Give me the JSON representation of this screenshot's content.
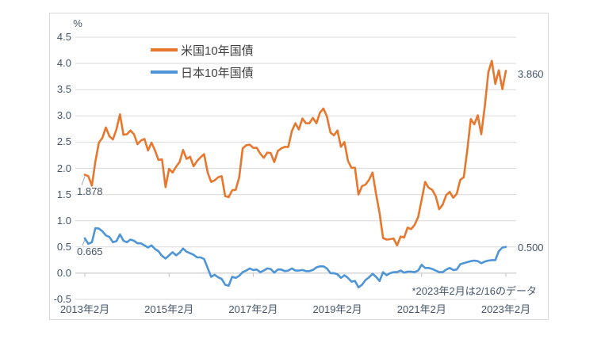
{
  "colors": {
    "us_line": "#E8772E",
    "jp_line": "#4E95D7",
    "grid": "#D9D9D9",
    "axis": "#BFBFBF",
    "leader": "#A6A6A6",
    "tick_text": "#44546A",
    "legend_text": "#3F3F3F",
    "frame_border": "#D9D9D9"
  },
  "chart_data": {
    "type": "line",
    "unit_label": "%",
    "frequency": "monthly",
    "x_start": "2013年2月",
    "x_end": "2023年2月",
    "x_tick_labels": [
      "2013年2月",
      "2015年2月",
      "2017年2月",
      "2019年2月",
      "2021年2月",
      "2023年2月"
    ],
    "x_tick_indices": [
      0,
      24,
      48,
      72,
      96,
      120
    ],
    "y_tick_labels": [
      "4.5",
      "4.0",
      "3.5",
      "3.0",
      "2.5",
      "2.0",
      "1.5",
      "1.0",
      "0.5",
      "0.0",
      "-0.5"
    ],
    "y_tick_values": [
      4.5,
      4.0,
      3.5,
      3.0,
      2.5,
      2.0,
      1.5,
      1.0,
      0.5,
      0.0,
      -0.5
    ],
    "ylim": [
      -0.5,
      4.5
    ],
    "grid": true,
    "legend_position": "top-left-inside",
    "series": [
      {
        "name": "米国10年国債",
        "color": "#E8772E",
        "values": [
          1.878,
          1.85,
          1.67,
          2.13,
          2.49,
          2.58,
          2.78,
          2.61,
          2.55,
          2.74,
          3.03,
          2.64,
          2.65,
          2.72,
          2.65,
          2.46,
          2.53,
          2.56,
          2.34,
          2.49,
          2.34,
          2.16,
          2.17,
          1.64,
          1.99,
          1.92,
          2.03,
          2.12,
          2.35,
          2.18,
          2.22,
          2.04,
          2.14,
          2.21,
          2.27,
          1.92,
          1.74,
          1.77,
          1.83,
          1.85,
          1.47,
          1.45,
          1.58,
          1.59,
          1.83,
          2.38,
          2.44,
          2.45,
          2.39,
          2.39,
          2.28,
          2.2,
          2.3,
          2.29,
          2.12,
          2.33,
          2.38,
          2.41,
          2.41,
          2.71,
          2.86,
          2.74,
          2.95,
          2.86,
          2.86,
          2.96,
          2.86,
          3.06,
          3.14,
          2.99,
          2.68,
          2.63,
          2.72,
          2.41,
          2.5,
          2.14,
          2.01,
          2.01,
          1.5,
          1.66,
          1.69,
          1.78,
          1.92,
          1.51,
          1.15,
          0.67,
          0.64,
          0.65,
          0.66,
          0.53,
          0.7,
          0.68,
          0.87,
          0.84,
          0.92,
          1.07,
          1.4,
          1.74,
          1.63,
          1.59,
          1.47,
          1.22,
          1.31,
          1.49,
          1.55,
          1.44,
          1.51,
          1.78,
          1.83,
          2.34,
          2.94,
          2.84,
          3.01,
          2.65,
          3.19,
          3.83,
          4.05,
          3.61,
          3.87,
          3.51,
          3.86
        ]
      },
      {
        "name": "日本10年国債",
        "color": "#4E95D7",
        "values": [
          0.665,
          0.56,
          0.59,
          0.86,
          0.85,
          0.8,
          0.72,
          0.69,
          0.59,
          0.61,
          0.74,
          0.62,
          0.59,
          0.64,
          0.62,
          0.57,
          0.57,
          0.53,
          0.49,
          0.53,
          0.46,
          0.42,
          0.33,
          0.28,
          0.34,
          0.4,
          0.34,
          0.39,
          0.47,
          0.41,
          0.38,
          0.35,
          0.3,
          0.3,
          0.27,
          0.1,
          -0.07,
          -0.03,
          -0.08,
          -0.11,
          -0.22,
          -0.24,
          -0.07,
          -0.09,
          -0.05,
          0.02,
          0.05,
          0.09,
          0.06,
          0.07,
          0.02,
          0.05,
          0.09,
          0.08,
          0.01,
          0.07,
          0.07,
          0.04,
          0.05,
          0.09,
          0.05,
          0.05,
          0.06,
          0.04,
          0.04,
          0.06,
          0.11,
          0.13,
          0.13,
          0.09,
          0.0,
          0.0,
          -0.02,
          -0.09,
          -0.04,
          -0.09,
          -0.16,
          -0.15,
          -0.27,
          -0.22,
          -0.13,
          -0.08,
          -0.01,
          -0.07,
          -0.15,
          0.02,
          -0.04,
          0.0,
          0.02,
          0.02,
          0.05,
          0.01,
          0.03,
          0.03,
          0.02,
          0.05,
          0.16,
          0.1,
          0.1,
          0.08,
          0.05,
          0.02,
          0.02,
          0.07,
          0.1,
          0.06,
          0.07,
          0.17,
          0.19,
          0.21,
          0.23,
          0.24,
          0.23,
          0.19,
          0.22,
          0.24,
          0.25,
          0.25,
          0.42,
          0.49,
          0.5
        ]
      }
    ],
    "point_labels": {
      "us_first": "1.878",
      "jp_first": "0.665",
      "us_last": "3.860",
      "jp_last": "0.500"
    },
    "annotation": "*2023年2月は2/16のデータ"
  }
}
